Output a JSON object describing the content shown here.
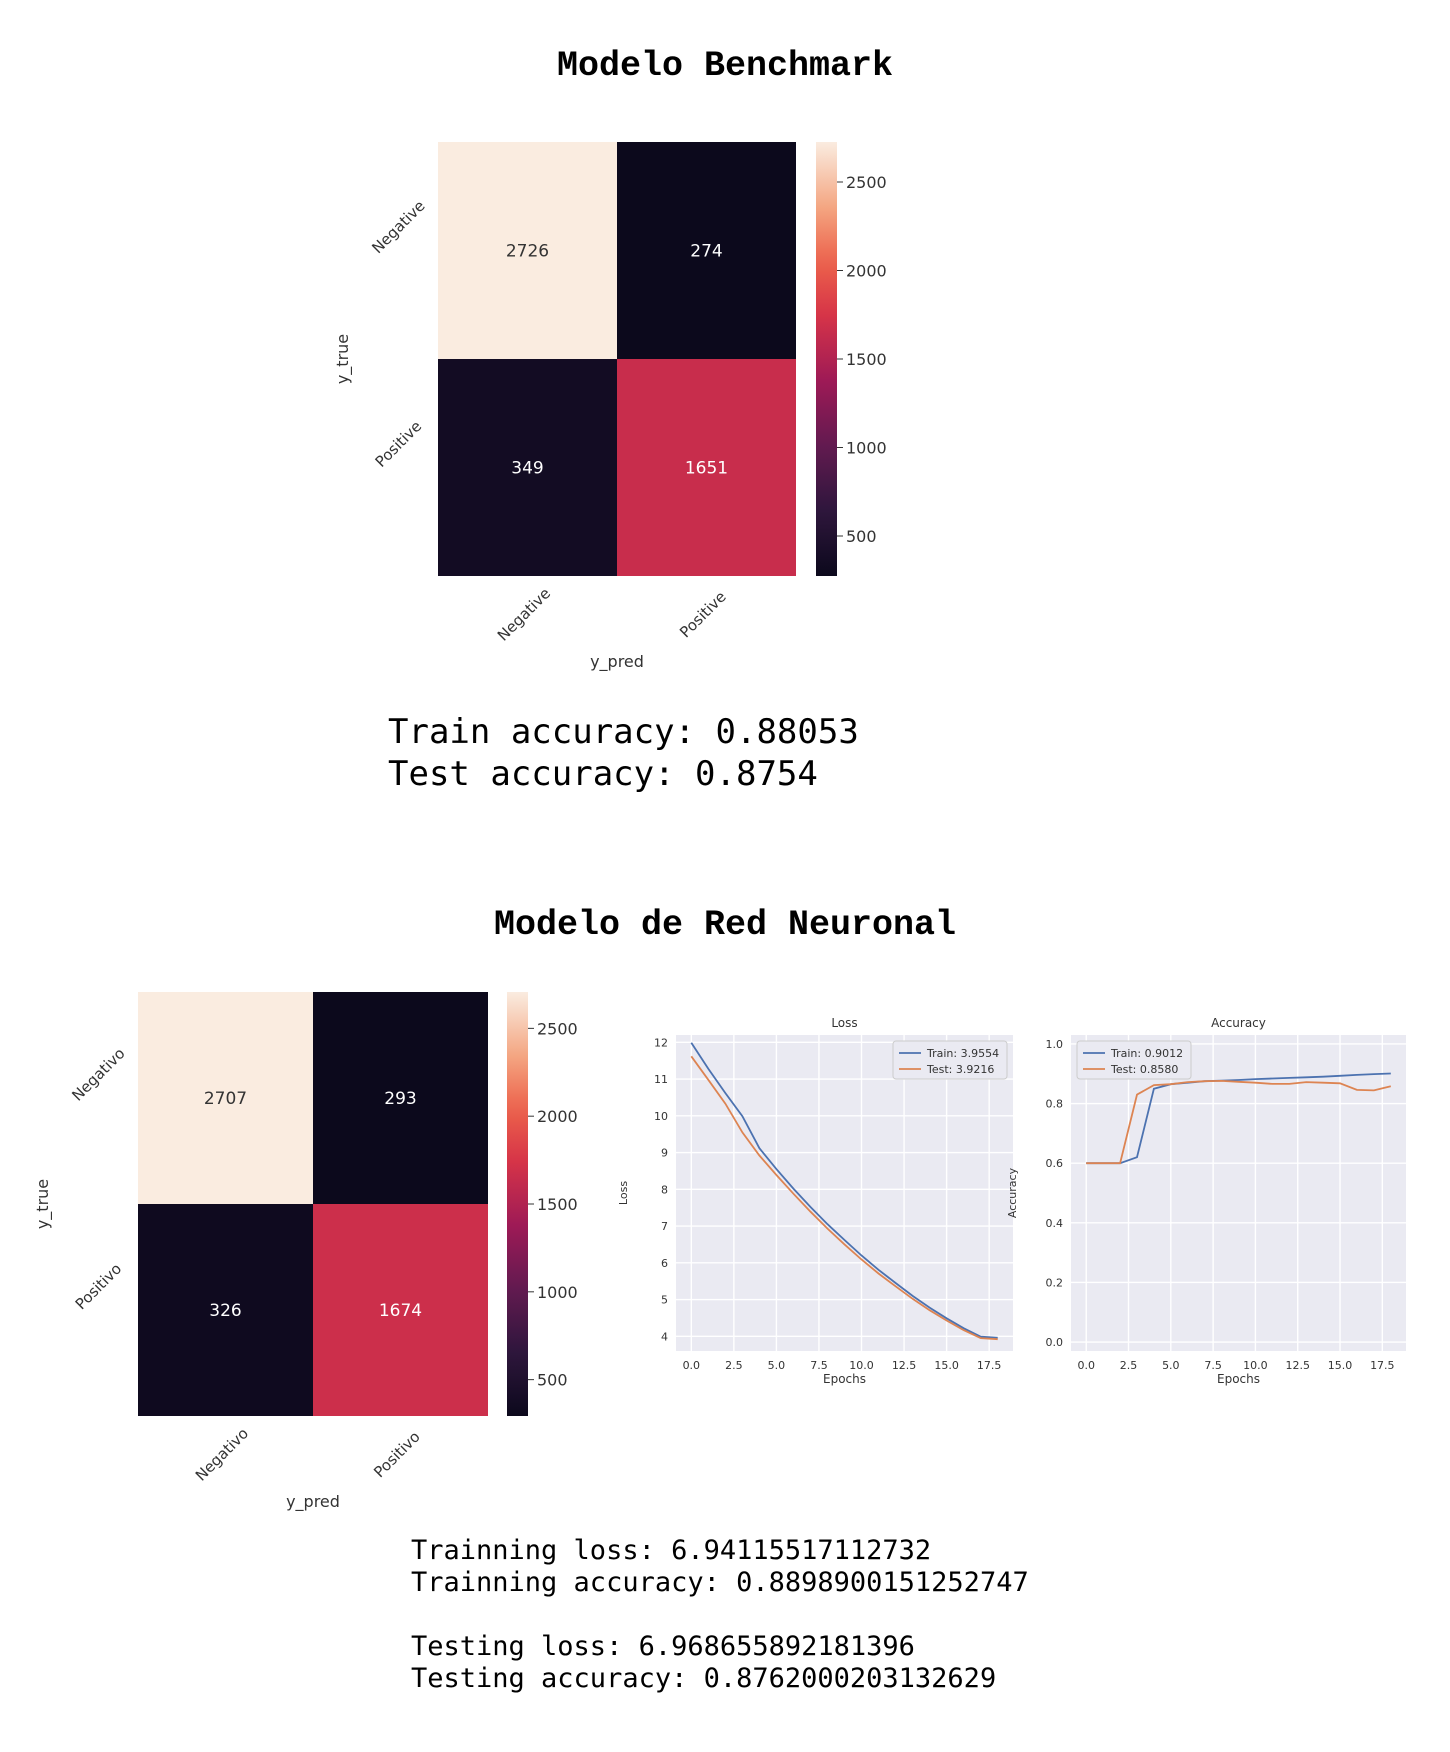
{
  "benchmark": {
    "title": "Modelo Benchmark",
    "matrix": {
      "type": "heatmap",
      "rows": [
        "Negative",
        "Positive"
      ],
      "cols": [
        "Negative",
        "Positive"
      ],
      "values": [
        [
          2726,
          274
        ],
        [
          349,
          1651
        ]
      ],
      "ylabel": "y_true",
      "xlabel": "y_pred",
      "colorbar_ticks": [
        2500,
        2000,
        1500,
        1000,
        500
      ],
      "colorbar_range": [
        274,
        2726
      ]
    },
    "results": [
      "Train accuracy: 0.88053",
      "Test accuracy: 0.8754"
    ]
  },
  "neural": {
    "title": "Modelo de Red Neuronal",
    "matrix": {
      "type": "heatmap",
      "rows": [
        "Negativo",
        "Positivo"
      ],
      "cols": [
        "Negativo",
        "Positivo"
      ],
      "values": [
        [
          2707,
          293
        ],
        [
          326,
          1674
        ]
      ],
      "ylabel": "y_true",
      "xlabel": "y_pred",
      "colorbar_ticks": [
        2500,
        2000,
        1500,
        1000,
        500
      ],
      "colorbar_range": [
        293,
        2707
      ]
    },
    "results": [
      "Trainning loss: 6.94115517112732",
      "Trainning accuracy: 0.8898900151252747",
      "Testing loss: 6.968655892181396",
      "Testing accuracy: 0.8762000203132629"
    ]
  },
  "chart_data": [
    {
      "type": "heatmap",
      "title": "Modelo Benchmark",
      "rows": [
        "Negative",
        "Positive"
      ],
      "cols": [
        "Negative",
        "Positive"
      ],
      "values": [
        [
          2726,
          274
        ],
        [
          349,
          1651
        ]
      ],
      "ylabel": "y_true",
      "xlabel": "y_pred"
    },
    {
      "type": "heatmap",
      "rows": [
        "Negativo",
        "Positivo"
      ],
      "cols": [
        "Negativo",
        "Positivo"
      ],
      "values": [
        [
          2707,
          293
        ],
        [
          326,
          1674
        ]
      ],
      "ylabel": "y_true",
      "xlabel": "y_pred"
    },
    {
      "type": "line",
      "title": "Loss",
      "xlabel": "Epochs",
      "ylabel": "Loss",
      "xlim": [
        -0.9,
        18.9
      ],
      "ylim": [
        3.6,
        12.2
      ],
      "xticks": [
        0.0,
        2.5,
        5.0,
        7.5,
        10.0,
        12.5,
        15.0,
        17.5
      ],
      "yticks": [
        4,
        5,
        6,
        7,
        8,
        9,
        10,
        11,
        12
      ],
      "xtick_labels": [
        "0.0",
        "2.5",
        "5.0",
        "7.5",
        "10.0",
        "12.5",
        "15.0",
        "17.5"
      ],
      "ytick_labels": [
        "4",
        "5",
        "6",
        "7",
        "8",
        "9",
        "10",
        "11",
        "12"
      ],
      "legend": "top-right",
      "grid": true,
      "x": [
        0,
        1,
        2,
        3,
        4,
        5,
        6,
        7,
        8,
        9,
        10,
        11,
        12,
        13,
        14,
        15,
        16,
        17,
        18
      ],
      "series": [
        {
          "name": "Train: 3.9554",
          "color": "#4c72b0",
          "values": [
            11.99,
            11.28,
            10.62,
            9.99,
            9.12,
            8.55,
            8.02,
            7.52,
            7.05,
            6.62,
            6.2,
            5.81,
            5.45,
            5.1,
            4.78,
            4.49,
            4.22,
            3.99,
            3.96
          ]
        },
        {
          "name": "Test: 3.9216",
          "color": "#dd8452",
          "values": [
            11.62,
            10.98,
            10.33,
            9.55,
            8.92,
            8.39,
            7.88,
            7.39,
            6.93,
            6.5,
            6.09,
            5.71,
            5.36,
            5.02,
            4.71,
            4.43,
            4.17,
            3.95,
            3.92
          ]
        }
      ]
    },
    {
      "type": "line",
      "title": "Accuracy",
      "xlabel": "Epochs",
      "ylabel": "Accuracy",
      "xlim": [
        -0.9,
        18.9
      ],
      "ylim": [
        -0.03,
        1.03
      ],
      "xticks": [
        0.0,
        2.5,
        5.0,
        7.5,
        10.0,
        12.5,
        15.0,
        17.5
      ],
      "yticks": [
        0.0,
        0.2,
        0.4,
        0.6,
        0.8,
        1.0
      ],
      "xtick_labels": [
        "0.0",
        "2.5",
        "5.0",
        "7.5",
        "10.0",
        "12.5",
        "15.0",
        "17.5"
      ],
      "ytick_labels": [
        "0.0",
        "0.2",
        "0.4",
        "0.6",
        "0.8",
        "1.0"
      ],
      "legend": "top-left",
      "grid": true,
      "x": [
        0,
        1,
        2,
        3,
        4,
        5,
        6,
        7,
        8,
        9,
        10,
        11,
        12,
        13,
        14,
        15,
        16,
        17,
        18
      ],
      "series": [
        {
          "name": "Train: 0.9012",
          "color": "#4c72b0",
          "values": [
            0.6,
            0.6,
            0.6,
            0.62,
            0.85,
            0.865,
            0.87,
            0.875,
            0.877,
            0.879,
            0.882,
            0.884,
            0.886,
            0.888,
            0.89,
            0.893,
            0.896,
            0.899,
            0.901
          ]
        },
        {
          "name": "Test: 0.8580",
          "color": "#dd8452",
          "values": [
            0.6,
            0.6,
            0.6,
            0.83,
            0.862,
            0.865,
            0.872,
            0.875,
            0.876,
            0.873,
            0.87,
            0.866,
            0.866,
            0.872,
            0.87,
            0.868,
            0.846,
            0.844,
            0.858
          ]
        }
      ]
    }
  ]
}
